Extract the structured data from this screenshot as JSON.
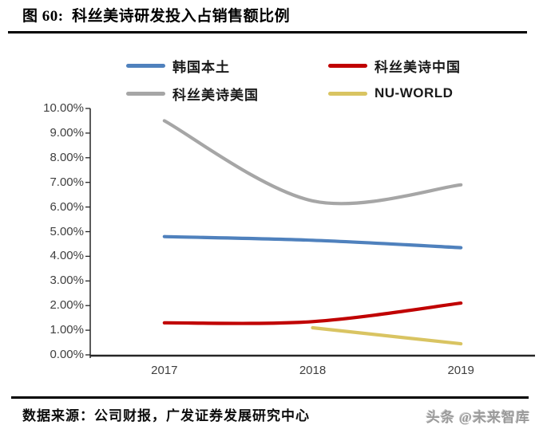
{
  "figure": {
    "title": "图 60:  科丝美诗研发投入占销售额比例",
    "source": "数据来源：公司财报，广发证券发展研究中心",
    "watermark": "头条 @未来智库"
  },
  "chart_data": {
    "type": "line",
    "title": "科丝美诗研发投入占销售额比例",
    "categories": [
      "2017",
      "2018",
      "2019"
    ],
    "series": [
      {
        "id": "korea-domestic",
        "name": "韩国本土",
        "color": "#4F81BD",
        "values": [
          4.8,
          4.65,
          4.35
        ]
      },
      {
        "id": "cosmax-china",
        "name": "科丝美诗中国",
        "color": "#C00000",
        "values": [
          1.3,
          1.35,
          2.1
        ]
      },
      {
        "id": "cosmax-us",
        "name": "科丝美诗美国",
        "color": "#A6A6A6",
        "values": [
          9.5,
          6.25,
          6.9
        ]
      },
      {
        "id": "nu-world",
        "name": "NU-WORLD",
        "color": "#D9C462",
        "values": [
          null,
          1.1,
          0.45
        ]
      }
    ],
    "xlabel": "",
    "ylabel": "",
    "ylim": [
      0,
      10
    ],
    "ytick_step": 1,
    "ytick_labels": [
      "10.00%",
      "9.00%",
      "8.00%",
      "7.00%",
      "6.00%",
      "5.00%",
      "4.00%",
      "3.00%",
      "2.00%",
      "1.00%",
      "0.00%"
    ],
    "grid": false,
    "smooth": true,
    "legend_position": "top",
    "axis_color": "#262626",
    "tick_label_color": "#3f3f3f"
  }
}
